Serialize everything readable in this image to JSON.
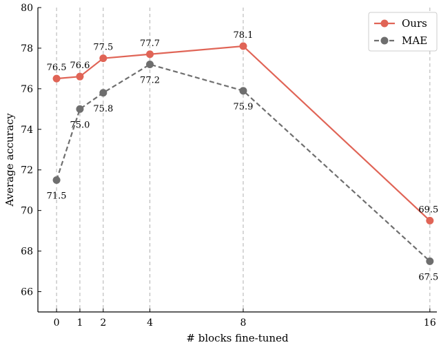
{
  "chart_data": {
    "type": "line",
    "x": [
      0,
      1,
      2,
      4,
      8,
      16
    ],
    "x_tick_labels": [
      "0",
      "1",
      "2",
      "4",
      "8",
      "16"
    ],
    "x_tick_positions": [
      0,
      1,
      2,
      4,
      8,
      16
    ],
    "xlabel": "# blocks fine-tuned",
    "ylabel": "Average accuracy",
    "ylim": [
      65,
      80
    ],
    "y_ticks": [
      66,
      68,
      70,
      72,
      74,
      76,
      78,
      80
    ],
    "grid": "vertical dashed lines at x ticks",
    "legend_position": "top-right",
    "series": [
      {
        "name": "Ours",
        "color": "#E06456",
        "line_style": "solid",
        "values": [
          76.5,
          76.6,
          77.5,
          77.7,
          78.1,
          69.5
        ],
        "labels": [
          "76.5",
          "76.6",
          "77.5",
          "77.7",
          "78.1",
          "69.5"
        ]
      },
      {
        "name": "MAE",
        "color": "#6E6E6E",
        "line_style": "dashed",
        "values": [
          71.5,
          75.0,
          75.8,
          77.2,
          75.9,
          67.5
        ],
        "labels": [
          "71.5",
          "75.0",
          "75.8",
          "77.2",
          "75.9",
          "67.5"
        ]
      }
    ]
  }
}
